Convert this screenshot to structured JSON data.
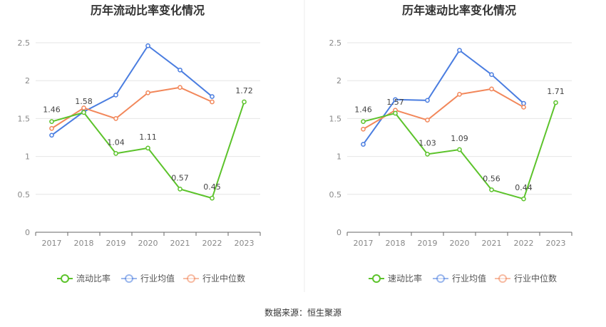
{
  "source_label": "数据来源：恒生聚源",
  "chart_data": [
    {
      "type": "line",
      "title": "历年流动比率变化情况",
      "categories": [
        "2017",
        "2018",
        "2019",
        "2020",
        "2021",
        "2022",
        "2023"
      ],
      "ylim": [
        0,
        2.5
      ],
      "yticks": [
        "0",
        "0.5",
        "1",
        "1.5",
        "2",
        "2.5"
      ],
      "grid": true,
      "legend_position": "bottom",
      "series": [
        {
          "name": "流动比率",
          "color": "#5cc32b",
          "values": [
            1.46,
            1.58,
            1.04,
            1.11,
            0.57,
            0.45,
            1.72
          ],
          "labels": [
            "1.46",
            "1.58",
            "1.04",
            "1.11",
            "0.57",
            "0.45",
            "1.72"
          ]
        },
        {
          "name": "行业均值",
          "color": "#4a7de0",
          "values": [
            1.28,
            1.59,
            1.81,
            2.46,
            2.14,
            1.79,
            null
          ]
        },
        {
          "name": "行业中位数",
          "color": "#f2875a",
          "values": [
            1.37,
            1.64,
            1.5,
            1.84,
            1.91,
            1.72,
            null
          ]
        }
      ]
    },
    {
      "type": "line",
      "title": "历年速动比率变化情况",
      "categories": [
        "2017",
        "2018",
        "2019",
        "2020",
        "2021",
        "2022",
        "2023"
      ],
      "ylim": [
        0,
        2.5
      ],
      "yticks": [
        "0",
        "0.5",
        "1",
        "1.5",
        "2",
        "2.5"
      ],
      "grid": true,
      "legend_position": "bottom",
      "series": [
        {
          "name": "速动比率",
          "color": "#5cc32b",
          "values": [
            1.46,
            1.57,
            1.03,
            1.09,
            0.56,
            0.44,
            1.71
          ],
          "labels": [
            "1.46",
            "1.57",
            "1.03",
            "1.09",
            "0.56",
            "0.44",
            "1.71"
          ]
        },
        {
          "name": "行业均值",
          "color": "#4a7de0",
          "values": [
            1.16,
            1.75,
            1.74,
            2.4,
            2.08,
            1.7,
            null
          ]
        },
        {
          "name": "行业中位数",
          "color": "#f2875a",
          "values": [
            1.36,
            1.61,
            1.48,
            1.82,
            1.89,
            1.65,
            null
          ]
        }
      ]
    }
  ]
}
